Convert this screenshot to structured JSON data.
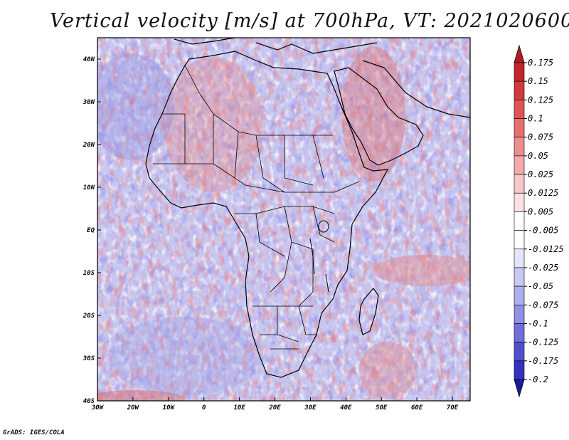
{
  "title": "Vertical velocity [m/s] at 700hPa, VT: 2021020600",
  "footer": "GrADS: IGES/COLA",
  "map": {
    "lon_range": [
      -30,
      75
    ],
    "lat_range": [
      -40,
      45
    ],
    "lon_ticks": [
      {
        "value": -30,
        "label": "30W"
      },
      {
        "value": -20,
        "label": "20W"
      },
      {
        "value": -10,
        "label": "10W"
      },
      {
        "value": 0,
        "label": "0"
      },
      {
        "value": 10,
        "label": "10E"
      },
      {
        "value": 20,
        "label": "20E"
      },
      {
        "value": 30,
        "label": "30E"
      },
      {
        "value": 40,
        "label": "40E"
      },
      {
        "value": 50,
        "label": "50E"
      },
      {
        "value": 60,
        "label": "60E"
      },
      {
        "value": 70,
        "label": "70E"
      }
    ],
    "lat_ticks": [
      {
        "value": 40,
        "label": "40N"
      },
      {
        "value": 30,
        "label": "30N"
      },
      {
        "value": 20,
        "label": "20N"
      },
      {
        "value": 10,
        "label": "10N"
      },
      {
        "value": 0,
        "label": "EQ"
      },
      {
        "value": -10,
        "label": "10S"
      },
      {
        "value": -20,
        "label": "20S"
      },
      {
        "value": -30,
        "label": "30S"
      },
      {
        "value": -40,
        "label": "40S"
      }
    ]
  },
  "colorbar": {
    "levels": [
      {
        "label": "0.175",
        "color": "#c0272d"
      },
      {
        "label": "0.15",
        "color": "#d13a3a"
      },
      {
        "label": "0.125",
        "color": "#dd5555"
      },
      {
        "label": "0.1",
        "color": "#e57070"
      },
      {
        "label": "0.075",
        "color": "#ec8e8e"
      },
      {
        "label": "0.05",
        "color": "#f2aaaa"
      },
      {
        "label": "0.025",
        "color": "#f7c8c8"
      },
      {
        "label": "0.0125",
        "color": "#fbe2e2"
      },
      {
        "label": "0.005",
        "color": "#ffffff"
      },
      {
        "label": "-0.005",
        "color": "#ffffff"
      },
      {
        "label": "-0.0125",
        "color": "#e4e4fa"
      },
      {
        "label": "-0.025",
        "color": "#c8c8f4"
      },
      {
        "label": "-0.05",
        "color": "#aeaeee"
      },
      {
        "label": "-0.075",
        "color": "#9090e6"
      },
      {
        "label": "-0.1",
        "color": "#7070dc"
      },
      {
        "label": "-0.125",
        "color": "#5050cf"
      },
      {
        "label": "-0.175",
        "color": "#3333bf"
      },
      {
        "label": "-0.2",
        "color": "#1f1fa8"
      }
    ],
    "top_arrow_color": "#b01c22",
    "bottom_arrow_color": "#1a1a9a"
  }
}
